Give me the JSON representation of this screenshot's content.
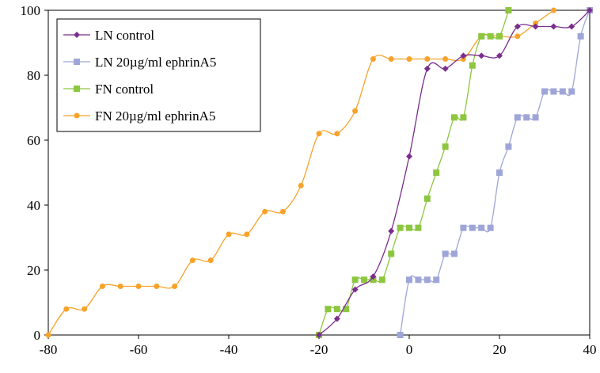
{
  "chart_data": {
    "type": "line",
    "title": "",
    "xlabel": "",
    "ylabel": "",
    "xlim": [
      -80,
      40
    ],
    "ylim": [
      0,
      100
    ],
    "xticks": [
      -80,
      -60,
      -40,
      -20,
      0,
      20,
      40
    ],
    "yticks": [
      0,
      20,
      40,
      60,
      80,
      100
    ],
    "grid": false,
    "legend_position": "top-left",
    "series": [
      {
        "name": "LN control",
        "color": "#7B2D8E",
        "marker": "diamond",
        "points": [
          [
            -20,
            0
          ],
          [
            -16,
            5
          ],
          [
            -12,
            14
          ],
          [
            -8,
            18
          ],
          [
            -4,
            32
          ],
          [
            0,
            55
          ],
          [
            4,
            82
          ],
          [
            8,
            82
          ],
          [
            12,
            86
          ],
          [
            16,
            86
          ],
          [
            20,
            86
          ],
          [
            24,
            95
          ],
          [
            28,
            95
          ],
          [
            32,
            95
          ],
          [
            36,
            95
          ],
          [
            40,
            100
          ]
        ]
      },
      {
        "name": "LN 20µg/ml ephrinA5",
        "color": "#9EA6D8",
        "marker": "square",
        "points": [
          [
            -2,
            0
          ],
          [
            0,
            17
          ],
          [
            2,
            17
          ],
          [
            4,
            17
          ],
          [
            6,
            17
          ],
          [
            8,
            25
          ],
          [
            10,
            25
          ],
          [
            12,
            33
          ],
          [
            14,
            33
          ],
          [
            16,
            33
          ],
          [
            18,
            33
          ],
          [
            20,
            50
          ],
          [
            22,
            58
          ],
          [
            24,
            67
          ],
          [
            26,
            67
          ],
          [
            28,
            67
          ],
          [
            30,
            75
          ],
          [
            32,
            75
          ],
          [
            34,
            75
          ],
          [
            36,
            75
          ],
          [
            38,
            92
          ],
          [
            40,
            100
          ]
        ]
      },
      {
        "name": "FN control",
        "color": "#8DC63F",
        "marker": "square",
        "points": [
          [
            -20,
            0
          ],
          [
            -18,
            8
          ],
          [
            -16,
            8
          ],
          [
            -14,
            8
          ],
          [
            -12,
            17
          ],
          [
            -10,
            17
          ],
          [
            -8,
            17
          ],
          [
            -6,
            17
          ],
          [
            -4,
            25
          ],
          [
            -2,
            33
          ],
          [
            0,
            33
          ],
          [
            2,
            33
          ],
          [
            4,
            42
          ],
          [
            6,
            50
          ],
          [
            8,
            58
          ],
          [
            10,
            67
          ],
          [
            12,
            67
          ],
          [
            14,
            83
          ],
          [
            16,
            92
          ],
          [
            18,
            92
          ],
          [
            20,
            92
          ],
          [
            22,
            100
          ]
        ]
      },
      {
        "name": "FN 20µg/ml ephrinA5",
        "color": "#F7A32B",
        "marker": "circle",
        "points": [
          [
            -80,
            0
          ],
          [
            -76,
            8
          ],
          [
            -72,
            8
          ],
          [
            -68,
            15
          ],
          [
            -64,
            15
          ],
          [
            -60,
            15
          ],
          [
            -56,
            15
          ],
          [
            -52,
            15
          ],
          [
            -48,
            23
          ],
          [
            -44,
            23
          ],
          [
            -40,
            31
          ],
          [
            -36,
            31
          ],
          [
            -32,
            38
          ],
          [
            -28,
            38
          ],
          [
            -24,
            46
          ],
          [
            -20,
            62
          ],
          [
            -16,
            62
          ],
          [
            -12,
            69
          ],
          [
            -8,
            85
          ],
          [
            -4,
            85
          ],
          [
            0,
            85
          ],
          [
            4,
            85
          ],
          [
            8,
            85
          ],
          [
            12,
            85
          ],
          [
            16,
            92
          ],
          [
            20,
            92
          ],
          [
            24,
            92
          ],
          [
            28,
            96
          ],
          [
            32,
            100
          ]
        ]
      }
    ]
  }
}
